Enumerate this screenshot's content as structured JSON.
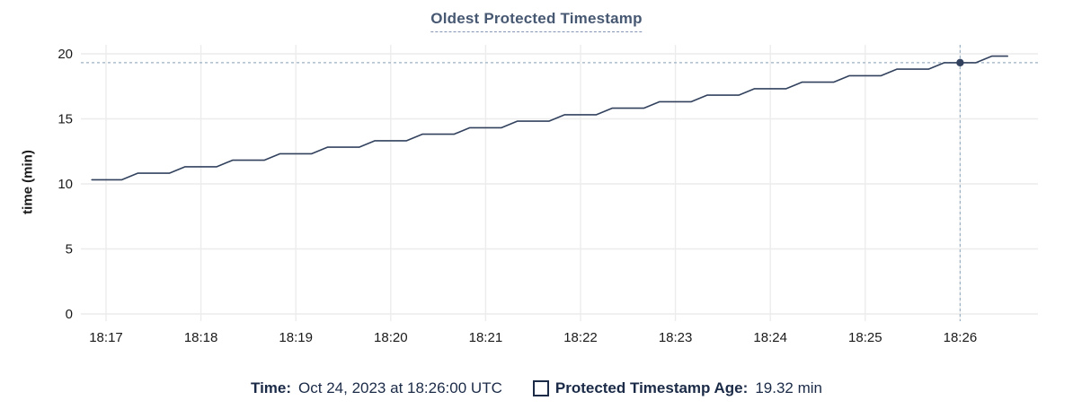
{
  "page": {
    "background": "#ffffff"
  },
  "title": {
    "text": "Oldest Protected Timestamp"
  },
  "colors": {
    "title_text": "#475872",
    "title_underline": "#8494b4",
    "series_line": "#32425e",
    "marker": "#32425e",
    "crosshair": "#9db1c4",
    "gridline": "#ececec",
    "axis_text": "#1a1a1a",
    "legend_text": "#1b2b47"
  },
  "legend": {
    "time_label": "Time:",
    "time_value": "Oct 24, 2023 at 18:26:00 UTC",
    "series_label": "Protected Timestamp Age:",
    "series_value": "19.32 min",
    "checkbox_checked": false
  },
  "chart_data": {
    "type": "line",
    "title": "Oldest Protected Timestamp",
    "xlabel": "",
    "ylabel": "time (min)",
    "ylim": [
      0,
      20
    ],
    "y_ticks": [
      0,
      5,
      10,
      15,
      20
    ],
    "grid": true,
    "legend_position": "bottom",
    "x_ticks": [
      {
        "label": "18:17",
        "t": 0
      },
      {
        "label": "18:18",
        "t": 1
      },
      {
        "label": "18:19",
        "t": 2
      },
      {
        "label": "18:20",
        "t": 3
      },
      {
        "label": "18:21",
        "t": 4
      },
      {
        "label": "18:22",
        "t": 5
      },
      {
        "label": "18:23",
        "t": 6
      },
      {
        "label": "18:24",
        "t": 7
      },
      {
        "label": "18:25",
        "t": 8
      },
      {
        "label": "18:26",
        "t": 9
      }
    ],
    "x_unit": "minutes since 18:17 UTC",
    "y_unit": "min",
    "series": [
      {
        "name": "Protected Timestamp Age",
        "color": "#32425e",
        "points": [
          [
            -0.15,
            10.32
          ],
          [
            0.167,
            10.32
          ],
          [
            0.333,
            10.82
          ],
          [
            0.667,
            10.82
          ],
          [
            0.833,
            11.32
          ],
          [
            1.167,
            11.32
          ],
          [
            1.333,
            11.82
          ],
          [
            1.667,
            11.82
          ],
          [
            1.833,
            12.32
          ],
          [
            2.167,
            12.32
          ],
          [
            2.333,
            12.82
          ],
          [
            2.667,
            12.82
          ],
          [
            2.833,
            13.32
          ],
          [
            3.167,
            13.32
          ],
          [
            3.333,
            13.82
          ],
          [
            3.667,
            13.82
          ],
          [
            3.833,
            14.32
          ],
          [
            4.167,
            14.32
          ],
          [
            4.333,
            14.82
          ],
          [
            4.667,
            14.82
          ],
          [
            4.833,
            15.32
          ],
          [
            5.167,
            15.32
          ],
          [
            5.333,
            15.82
          ],
          [
            5.667,
            15.82
          ],
          [
            5.833,
            16.32
          ],
          [
            6.167,
            16.32
          ],
          [
            6.333,
            16.82
          ],
          [
            6.667,
            16.82
          ],
          [
            6.833,
            17.32
          ],
          [
            7.167,
            17.32
          ],
          [
            7.333,
            17.82
          ],
          [
            7.667,
            17.82
          ],
          [
            7.833,
            18.32
          ],
          [
            8.167,
            18.32
          ],
          [
            8.333,
            18.82
          ],
          [
            8.667,
            18.82
          ],
          [
            8.833,
            19.32
          ],
          [
            9.167,
            19.32
          ],
          [
            9.333,
            19.82
          ],
          [
            9.5,
            19.82
          ]
        ]
      }
    ],
    "hover_point": {
      "t": 9.0,
      "time": "18:26:00 UTC",
      "value_min": 19.32
    }
  }
}
